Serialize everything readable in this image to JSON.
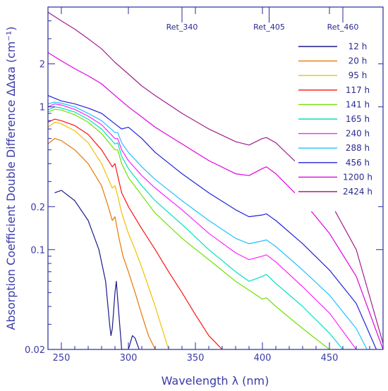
{
  "chart_data": {
    "type": "line",
    "title": "",
    "xlabel": "Wavelength λ (nm)",
    "ylabel": "Absorption Coefficient Double Difference ΔΔαa (cm⁻¹)",
    "xscale": "linear",
    "yscale": "log",
    "xlim": [
      240,
      490
    ],
    "ylim": [
      0.02,
      5
    ],
    "x_ticks": [
      250,
      300,
      350,
      400,
      450
    ],
    "y_ticks": [
      0.02,
      0.1,
      0.2,
      1,
      2
    ],
    "top_markers": [
      {
        "label": "Ret_340",
        "x": 340
      },
      {
        "label": "Ret_405",
        "x": 405
      },
      {
        "label": "Ret_460",
        "x": 460
      }
    ],
    "legend_position": "top-right",
    "grid": false,
    "series": [
      {
        "name": "12 h",
        "color": "#1a1a8c",
        "x": [
          245,
          250,
          260,
          270,
          278,
          283,
          286,
          287,
          288,
          290,
          291,
          292,
          295,
          300,
          303,
          305,
          308
        ],
        "y": [
          0.25,
          0.26,
          0.22,
          0.16,
          0.1,
          0.06,
          0.03,
          0.025,
          0.028,
          0.05,
          0.06,
          0.045,
          0.02,
          0.02,
          0.025,
          0.024,
          0.02
        ]
      },
      {
        "name": "20 h",
        "color": "#e87800",
        "x": [
          240,
          245,
          250,
          260,
          270,
          280,
          285,
          288,
          290,
          293,
          296,
          300,
          305,
          310,
          315,
          320
        ],
        "y": [
          0.55,
          0.6,
          0.58,
          0.5,
          0.4,
          0.28,
          0.2,
          0.16,
          0.17,
          0.12,
          0.09,
          0.07,
          0.05,
          0.035,
          0.025,
          0.02
        ]
      },
      {
        "name": "95 h",
        "color": "#f0c000",
        "x": [
          240,
          245,
          250,
          260,
          270,
          280,
          288,
          290,
          292,
          295,
          300,
          305,
          310,
          315,
          320,
          330
        ],
        "y": [
          0.72,
          0.78,
          0.76,
          0.68,
          0.56,
          0.4,
          0.27,
          0.28,
          0.24,
          0.18,
          0.13,
          0.1,
          0.075,
          0.055,
          0.04,
          0.02
        ]
      },
      {
        "name": "117 h",
        "color": "#ff1010",
        "x": [
          240,
          245,
          250,
          260,
          270,
          280,
          288,
          290,
          292,
          295,
          300,
          310,
          320,
          330,
          340,
          350,
          360,
          370
        ],
        "y": [
          0.78,
          0.82,
          0.8,
          0.74,
          0.64,
          0.5,
          0.38,
          0.4,
          0.33,
          0.25,
          0.2,
          0.14,
          0.1,
          0.07,
          0.05,
          0.035,
          0.025,
          0.02
        ]
      },
      {
        "name": "141 h",
        "color": "#70e000",
        "x": [
          240,
          245,
          250,
          260,
          270,
          280,
          290,
          292,
          295,
          300,
          310,
          320,
          340,
          360,
          380,
          400,
          403,
          410,
          430,
          450
        ],
        "y": [
          0.92,
          0.96,
          0.95,
          0.88,
          0.78,
          0.65,
          0.5,
          0.5,
          0.4,
          0.32,
          0.24,
          0.18,
          0.12,
          0.085,
          0.06,
          0.045,
          0.046,
          0.04,
          0.028,
          0.02
        ]
      },
      {
        "name": "165 h",
        "color": "#00e0c0",
        "x": [
          240,
          245,
          250,
          260,
          270,
          280,
          290,
          292,
          295,
          300,
          310,
          320,
          340,
          360,
          380,
          390,
          400,
          403,
          410,
          430,
          450,
          460
        ],
        "y": [
          0.95,
          1.0,
          0.98,
          0.92,
          0.82,
          0.7,
          0.55,
          0.56,
          0.45,
          0.37,
          0.28,
          0.22,
          0.15,
          0.1,
          0.07,
          0.06,
          0.065,
          0.067,
          0.058,
          0.04,
          0.026,
          0.02
        ]
      },
      {
        "name": "240 h",
        "color": "#ff20ff",
        "x": [
          240,
          245,
          250,
          260,
          270,
          280,
          290,
          292,
          295,
          300,
          310,
          320,
          340,
          360,
          380,
          390,
          400,
          403,
          410,
          430,
          450,
          470
        ],
        "y": [
          1.0,
          1.05,
          1.03,
          0.96,
          0.86,
          0.75,
          0.6,
          0.6,
          0.5,
          0.42,
          0.33,
          0.27,
          0.19,
          0.13,
          0.095,
          0.085,
          0.09,
          0.092,
          0.082,
          0.055,
          0.036,
          0.02
        ]
      },
      {
        "name": "288 h",
        "color": "#20c0ff",
        "x": [
          240,
          245,
          250,
          260,
          270,
          280,
          290,
          292,
          295,
          300,
          310,
          320,
          340,
          360,
          380,
          390,
          400,
          403,
          410,
          430,
          450,
          470,
          478
        ],
        "y": [
          1.05,
          1.08,
          1.06,
          1.0,
          0.9,
          0.8,
          0.66,
          0.66,
          0.56,
          0.48,
          0.38,
          0.31,
          0.22,
          0.16,
          0.12,
          0.11,
          0.115,
          0.117,
          0.105,
          0.072,
          0.048,
          0.028,
          0.02
        ]
      },
      {
        "name": "456 h",
        "color": "#2020e0",
        "x": [
          240,
          245,
          250,
          260,
          270,
          280,
          290,
          295,
          300,
          310,
          320,
          340,
          360,
          380,
          390,
          400,
          403,
          410,
          430,
          450,
          470,
          485
        ],
        "y": [
          1.2,
          1.15,
          1.1,
          1.05,
          0.98,
          0.9,
          0.76,
          0.7,
          0.72,
          0.6,
          0.48,
          0.34,
          0.25,
          0.19,
          0.17,
          0.175,
          0.178,
          0.16,
          0.11,
          0.072,
          0.042,
          0.02
        ]
      },
      {
        "name": "1200 h",
        "color": "#e000e0",
        "x": [
          240,
          250,
          260,
          270,
          280,
          290,
          300,
          310,
          320,
          340,
          360,
          380,
          390,
          400,
          403,
          410,
          430,
          450,
          470,
          490
        ],
        "y": [
          2.4,
          2.1,
          1.85,
          1.65,
          1.45,
          1.2,
          1.0,
          0.85,
          0.72,
          0.55,
          0.42,
          0.34,
          0.33,
          0.37,
          0.38,
          0.34,
          0.22,
          0.13,
          0.065,
          0.02
        ]
      },
      {
        "name": "2424 h",
        "color": "#a0208c",
        "x": [
          240,
          250,
          260,
          270,
          280,
          290,
          300,
          310,
          320,
          340,
          360,
          380,
          390,
          400,
          403,
          410,
          430,
          450,
          470,
          490
        ],
        "y": [
          4.6,
          4.0,
          3.5,
          3.0,
          2.55,
          2.05,
          1.7,
          1.4,
          1.2,
          0.9,
          0.7,
          0.57,
          0.54,
          0.6,
          0.61,
          0.56,
          0.37,
          0.22,
          0.1,
          0.022
        ]
      }
    ]
  }
}
